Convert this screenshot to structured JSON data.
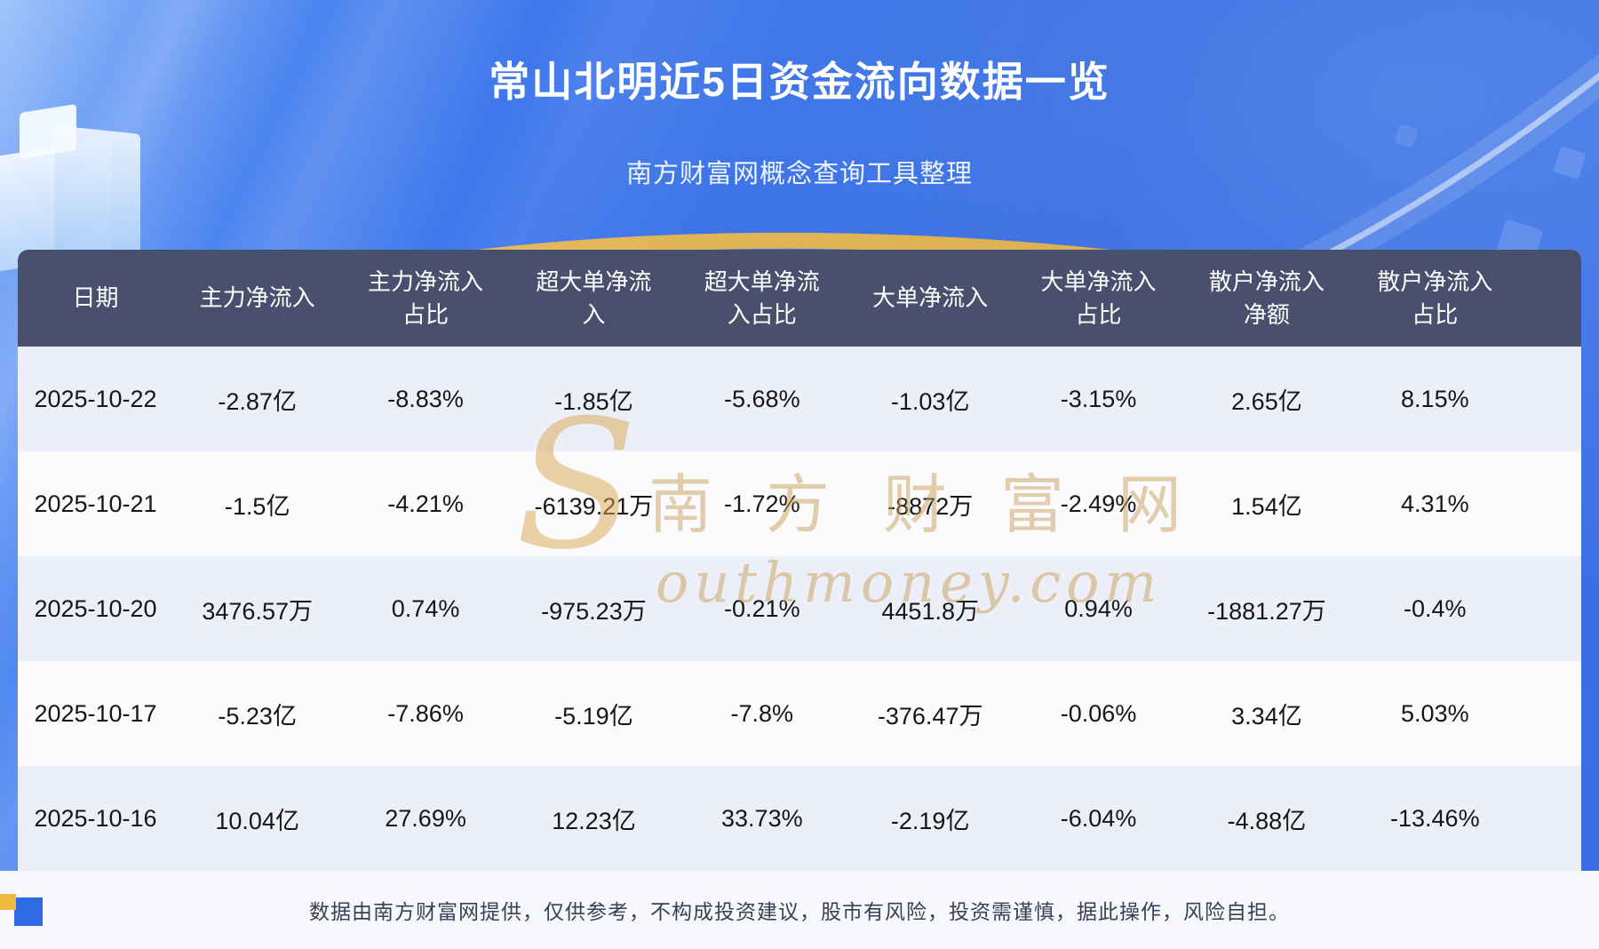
{
  "page": {
    "title": "常山北明近5日资金流向数据一览",
    "subtitle": "南方财富网概念查询工具整理",
    "disclaimer": "数据由南方财富网提供，仅供参考，不构成投资建议，股市有风险，投资需谨慎，据此操作，风险自担。",
    "watermark": {
      "initial": "S",
      "main": "南方财富网",
      "sub": "outhmoney.com"
    }
  },
  "chart_data": {
    "type": "table",
    "title": "常山北明近5日资金流向数据一览",
    "columns": [
      "日期",
      "主力净流入",
      "主力净流入占比",
      "超大单净流入",
      "超大单净流入占比",
      "大单净流入",
      "大单净流入占比",
      "散户净流入净额",
      "散户净流入占比"
    ],
    "rows": [
      [
        "2025-10-22",
        "-2.87亿",
        "-8.83%",
        "-1.85亿",
        "-5.68%",
        "-1.03亿",
        "-3.15%",
        "2.65亿",
        "8.15%"
      ],
      [
        "2025-10-21",
        "-1.5亿",
        "-4.21%",
        "-6139.21万",
        "-1.72%",
        "-8872万",
        "-2.49%",
        "1.54亿",
        "4.31%"
      ],
      [
        "2025-10-20",
        "3476.57万",
        "0.74%",
        "-975.23万",
        "-0.21%",
        "4451.8万",
        "0.94%",
        "-1881.27万",
        "-0.4%"
      ],
      [
        "2025-10-17",
        "-5.23亿",
        "-7.86%",
        "-5.19亿",
        "-7.8%",
        "-376.47万",
        "-0.06%",
        "3.34亿",
        "5.03%"
      ],
      [
        "2025-10-16",
        "10.04亿",
        "27.69%",
        "12.23亿",
        "33.73%",
        "-2.19亿",
        "-6.04%",
        "-4.88亿",
        "-13.46%"
      ]
    ]
  },
  "colors": {
    "background_blue": "#2F63DC",
    "header_bg": "#49506E",
    "row_alt_bg": "#EDEFF8",
    "row_bg": "#FBFBFE",
    "accent_gold": "#F5C14E",
    "footer_bg": "#F7F8FB",
    "footer_text": "#3A4156",
    "watermark_gold": "#C9A05A"
  }
}
